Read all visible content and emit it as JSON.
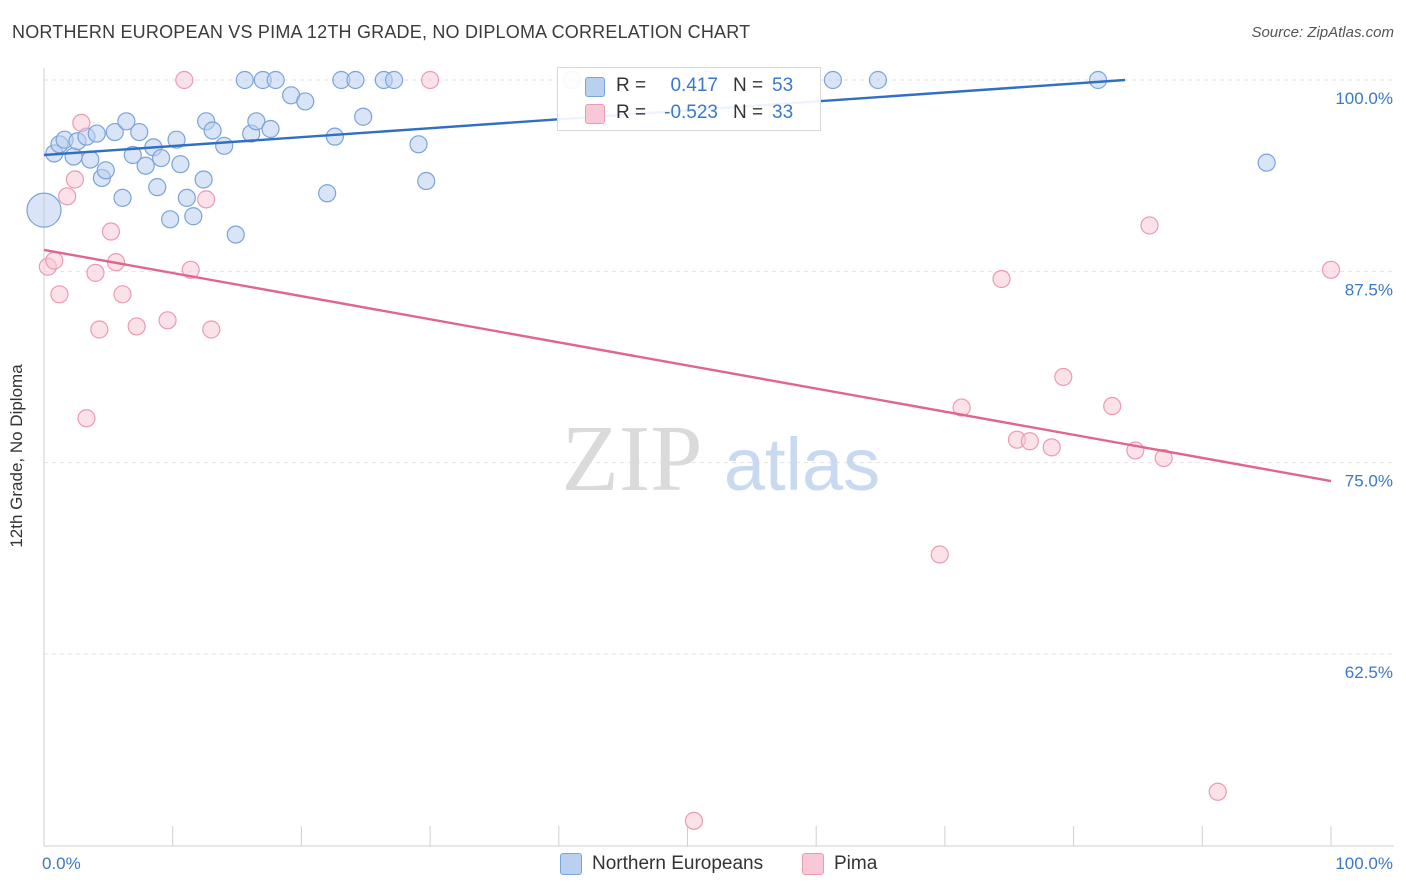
{
  "header": {
    "title": "NORTHERN EUROPEAN VS PIMA 12TH GRADE, NO DIPLOMA CORRELATION CHART",
    "source": "Source: ZipAtlas.com"
  },
  "legend": {
    "rows": [
      {
        "r_label": "R =",
        "r_value": "0.417",
        "n_label": "N =",
        "n_value": "53"
      },
      {
        "r_label": "R =",
        "r_value": "-0.523",
        "n_label": "N =",
        "n_value": "33"
      }
    ],
    "bottom": [
      "Northern Europeans",
      "Pima"
    ]
  },
  "watermark": {
    "zip": "ZIP",
    "atlas": "atlas"
  },
  "colors": {
    "blue_fill": "#b9d0f0",
    "blue_stroke": "#7aa3d9",
    "blue_line": "#2f6fc4",
    "pink_fill": "#f8c8d6",
    "pink_stroke": "#ec9ab3",
    "pink_line": "#e0668f",
    "tick_label": "#3b78c9",
    "grid": "#e2e2e2"
  },
  "chart_data": {
    "type": "scatter",
    "title": "NORTHERN EUROPEAN VS PIMA 12TH GRADE, NO DIPLOMA CORRELATION CHART",
    "xlabel": "",
    "ylabel": "12th Grade, No Diploma",
    "xlim": [
      0,
      100
    ],
    "ylim": [
      50,
      101.5
    ],
    "x_tick_labels": [
      "0.0%",
      "100.0%"
    ],
    "y_ticks": [
      62.5,
      75.0,
      87.5,
      100.0
    ],
    "y_tick_labels": [
      "62.5%",
      "75.0%",
      "87.5%",
      "100.0%"
    ],
    "grid": true,
    "legend_position": "top-center",
    "series": [
      {
        "name": "Northern Europeans",
        "color": "#b9d0f0",
        "trend": {
          "x": [
            0,
            84
          ],
          "y": [
            95.1,
            100.0
          ]
        },
        "points": [
          {
            "x": 0.0,
            "y": 91.5,
            "size": "large"
          },
          {
            "x": 0.8,
            "y": 95.2
          },
          {
            "x": 1.2,
            "y": 95.8
          },
          {
            "x": 1.6,
            "y": 96.1
          },
          {
            "x": 2.3,
            "y": 95.0
          },
          {
            "x": 2.6,
            "y": 96.0
          },
          {
            "x": 3.3,
            "y": 96.3
          },
          {
            "x": 3.6,
            "y": 94.8
          },
          {
            "x": 4.1,
            "y": 96.5
          },
          {
            "x": 4.5,
            "y": 93.6
          },
          {
            "x": 4.8,
            "y": 94.1
          },
          {
            "x": 5.5,
            "y": 96.6
          },
          {
            "x": 6.1,
            "y": 92.3
          },
          {
            "x": 6.4,
            "y": 97.3
          },
          {
            "x": 6.9,
            "y": 95.1
          },
          {
            "x": 7.4,
            "y": 96.6
          },
          {
            "x": 7.9,
            "y": 94.4
          },
          {
            "x": 8.5,
            "y": 95.6
          },
          {
            "x": 8.8,
            "y": 93.0
          },
          {
            "x": 9.1,
            "y": 94.9
          },
          {
            "x": 9.8,
            "y": 90.9
          },
          {
            "x": 10.3,
            "y": 96.1
          },
          {
            "x": 10.6,
            "y": 94.5
          },
          {
            "x": 11.1,
            "y": 92.3
          },
          {
            "x": 11.6,
            "y": 91.1
          },
          {
            "x": 12.4,
            "y": 93.5
          },
          {
            "x": 12.6,
            "y": 97.3
          },
          {
            "x": 13.1,
            "y": 96.7
          },
          {
            "x": 14.0,
            "y": 95.7
          },
          {
            "x": 14.9,
            "y": 89.9
          },
          {
            "x": 15.6,
            "y": 100.0
          },
          {
            "x": 16.1,
            "y": 96.5
          },
          {
            "x": 16.5,
            "y": 97.3
          },
          {
            "x": 17.0,
            "y": 100.0
          },
          {
            "x": 17.6,
            "y": 96.8
          },
          {
            "x": 18.0,
            "y": 100.0
          },
          {
            "x": 19.2,
            "y": 99.0
          },
          {
            "x": 20.3,
            "y": 98.6
          },
          {
            "x": 22.0,
            "y": 92.6
          },
          {
            "x": 22.6,
            "y": 96.3
          },
          {
            "x": 23.1,
            "y": 100.0
          },
          {
            "x": 24.2,
            "y": 100.0
          },
          {
            "x": 24.8,
            "y": 97.6
          },
          {
            "x": 26.4,
            "y": 100.0
          },
          {
            "x": 27.2,
            "y": 100.0
          },
          {
            "x": 29.1,
            "y": 95.8
          },
          {
            "x": 29.7,
            "y": 93.4
          },
          {
            "x": 41.0,
            "y": 100.0
          },
          {
            "x": 51.6,
            "y": 100.0
          },
          {
            "x": 61.3,
            "y": 100.0
          },
          {
            "x": 64.8,
            "y": 100.0
          },
          {
            "x": 81.9,
            "y": 100.0
          },
          {
            "x": 95.0,
            "y": 94.6
          }
        ]
      },
      {
        "name": "Pima",
        "color": "#f8c8d6",
        "trend": {
          "x": [
            0,
            100
          ],
          "y": [
            88.9,
            73.8
          ]
        },
        "points": [
          {
            "x": 0.3,
            "y": 87.8
          },
          {
            "x": 0.8,
            "y": 88.2
          },
          {
            "x": 1.2,
            "y": 86.0
          },
          {
            "x": 1.8,
            "y": 92.4
          },
          {
            "x": 2.4,
            "y": 93.5
          },
          {
            "x": 2.9,
            "y": 97.2
          },
          {
            "x": 3.3,
            "y": 77.9
          },
          {
            "x": 4.0,
            "y": 87.4
          },
          {
            "x": 4.3,
            "y": 83.7
          },
          {
            "x": 5.2,
            "y": 90.1
          },
          {
            "x": 5.6,
            "y": 88.1
          },
          {
            "x": 6.1,
            "y": 86.0
          },
          {
            "x": 7.2,
            "y": 83.9
          },
          {
            "x": 9.6,
            "y": 84.3
          },
          {
            "x": 10.9,
            "y": 100.0
          },
          {
            "x": 11.4,
            "y": 87.6
          },
          {
            "x": 12.6,
            "y": 92.2
          },
          {
            "x": 13.0,
            "y": 83.7
          },
          {
            "x": 30.0,
            "y": 100.0
          },
          {
            "x": 50.5,
            "y": 51.6
          },
          {
            "x": 69.6,
            "y": 69.0
          },
          {
            "x": 71.3,
            "y": 78.6
          },
          {
            "x": 74.4,
            "y": 87.0
          },
          {
            "x": 75.6,
            "y": 76.5
          },
          {
            "x": 76.6,
            "y": 76.4
          },
          {
            "x": 78.3,
            "y": 76.0
          },
          {
            "x": 79.2,
            "y": 80.6
          },
          {
            "x": 83.0,
            "y": 78.7
          },
          {
            "x": 84.8,
            "y": 75.8
          },
          {
            "x": 85.9,
            "y": 90.5
          },
          {
            "x": 87.0,
            "y": 75.3
          },
          {
            "x": 91.2,
            "y": 53.5
          },
          {
            "x": 100.0,
            "y": 87.6
          }
        ]
      }
    ]
  }
}
